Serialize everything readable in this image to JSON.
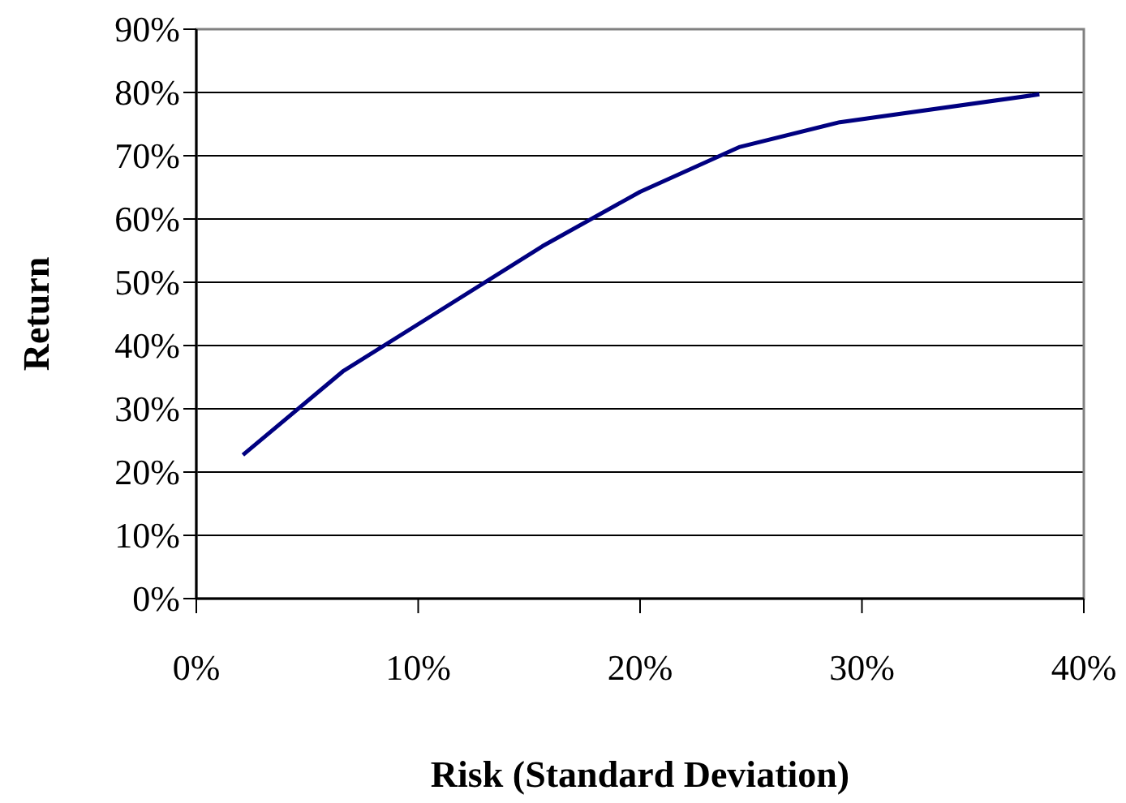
{
  "chart_data": {
    "type": "line",
    "xlabel": "Risk (Standard Deviation)",
    "ylabel": "Return",
    "x": [
      2.1,
      6.6,
      15.6,
      20.0,
      24.5,
      29.0,
      38.0
    ],
    "series": [
      {
        "color": "#000080",
        "values": [
          22.7,
          35.9,
          55.7,
          64.3,
          71.4,
          75.3,
          79.7
        ]
      }
    ],
    "xlim": [
      0,
      40
    ],
    "xticks": [
      {
        "value": 0,
        "label": "0%"
      },
      {
        "value": 10,
        "label": "10%"
      },
      {
        "value": 20,
        "label": "20%"
      },
      {
        "value": 30,
        "label": "30%"
      },
      {
        "value": 40,
        "label": "40%"
      }
    ],
    "ylim": [
      0,
      90
    ],
    "yticks": [
      {
        "value": 0,
        "label": "0%"
      },
      {
        "value": 10,
        "label": "10%"
      },
      {
        "value": 20,
        "label": "20%"
      },
      {
        "value": 30,
        "label": "30%"
      },
      {
        "value": 40,
        "label": "40%"
      },
      {
        "value": 50,
        "label": "50%"
      },
      {
        "value": 60,
        "label": "60%"
      },
      {
        "value": 70,
        "label": "70%"
      },
      {
        "value": 80,
        "label": "80%"
      },
      {
        "value": 90,
        "label": "90%"
      }
    ],
    "grid": "y",
    "marker": "none",
    "line_style": "solid"
  }
}
